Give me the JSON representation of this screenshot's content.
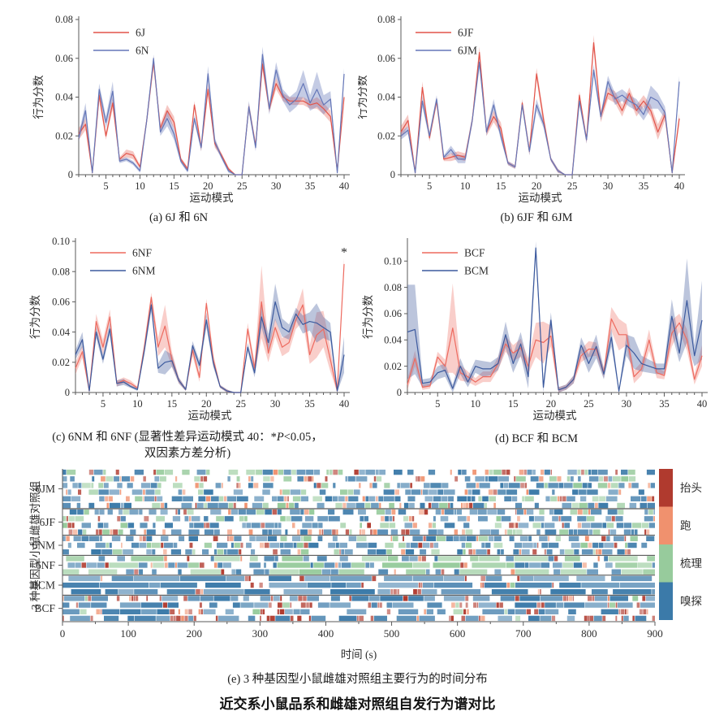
{
  "title": "近交系小鼠品系和雌雄对照组自发行为谱对比",
  "captions": {
    "a": "(a) 6J 和 6N",
    "b": "(b) 6JF 和 6JM",
    "c_pre": "(c)  6NM 和 6NF (显著性差异运动模式 40：*",
    "c_italic": "P",
    "c_post": "<0.05，",
    "c_line2": "双因素方差分析)",
    "d": "(d)  BCF 和 BCM",
    "e": "(e) 3 种基因型小鼠雌雄对照组主要行为的时间分布"
  },
  "chart_data": [
    {
      "id": "a",
      "type": "line",
      "xlabel": "运动模式",
      "ylabel": "行为分数",
      "xlim": [
        1,
        40
      ],
      "xticks": [
        5,
        10,
        15,
        20,
        25,
        30,
        35,
        40
      ],
      "ylim": [
        0,
        0.08
      ],
      "yticks": [
        0,
        0.02,
        0.04,
        0.06,
        0.08
      ],
      "ytick_labels": [
        "0",
        "0.02",
        "0.04",
        "0.06",
        "0.08"
      ],
      "series": [
        {
          "name": "6J",
          "color": "#e2544a",
          "band": "rgba(226,84,74,0.33)",
          "values": [
            0.021,
            0.026,
            0.001,
            0.041,
            0.02,
            0.037,
            0.008,
            0.011,
            0.01,
            0.004,
            0.028,
            0.058,
            0.024,
            0.033,
            0.027,
            0.008,
            0.003,
            0.036,
            0.014,
            0.044,
            0.016,
            0.01,
            0.003,
            0.0,
            0.0,
            0.035,
            0.015,
            0.057,
            0.034,
            0.047,
            0.04,
            0.038,
            0.038,
            0.038,
            0.036,
            0.037,
            0.034,
            0.03,
            0.002,
            0.04
          ],
          "err": [
            0.003,
            0.003,
            0.001,
            0.003,
            0.002,
            0.003,
            0.001,
            0.002,
            0.002,
            0.001,
            0.002,
            0.003,
            0.002,
            0.003,
            0.003,
            0.001,
            0.001,
            0.002,
            0.002,
            0.003,
            0.002,
            0.001,
            0.001,
            0.0,
            0.0,
            0.002,
            0.002,
            0.003,
            0.002,
            0.003,
            0.002,
            0.002,
            0.002,
            0.002,
            0.002,
            0.003,
            0.003,
            0.003,
            0.001,
            0.002
          ]
        },
        {
          "name": "6N",
          "color": "#6577b8",
          "band": "rgba(101,119,184,0.38)",
          "values": [
            0.019,
            0.033,
            0.001,
            0.044,
            0.027,
            0.043,
            0.007,
            0.008,
            0.006,
            0.002,
            0.028,
            0.06,
            0.022,
            0.029,
            0.021,
            0.007,
            0.002,
            0.029,
            0.014,
            0.052,
            0.017,
            0.009,
            0.002,
            0.0,
            0.0,
            0.035,
            0.014,
            0.062,
            0.034,
            0.054,
            0.041,
            0.036,
            0.039,
            0.047,
            0.037,
            0.044,
            0.036,
            0.039,
            0.001,
            0.052
          ],
          "err": [
            0.002,
            0.004,
            0.001,
            0.003,
            0.003,
            0.005,
            0.001,
            0.001,
            0.001,
            0.001,
            0.002,
            0.002,
            0.002,
            0.004,
            0.003,
            0.001,
            0.001,
            0.002,
            0.002,
            0.004,
            0.002,
            0.001,
            0.001,
            0.0,
            0.0,
            0.003,
            0.002,
            0.004,
            0.003,
            0.004,
            0.003,
            0.004,
            0.004,
            0.007,
            0.004,
            0.009,
            0.005,
            0.004,
            0.001,
            0.003
          ]
        }
      ]
    },
    {
      "id": "b",
      "type": "line",
      "xlabel": "运动模式",
      "ylabel": "行为分数",
      "xlim": [
        1,
        40
      ],
      "xticks": [
        5,
        10,
        15,
        20,
        25,
        30,
        35,
        40
      ],
      "ylim": [
        0,
        0.08
      ],
      "yticks": [
        0,
        0.02,
        0.04,
        0.06,
        0.08
      ],
      "ytick_labels": [
        "0",
        "0.02",
        "0.04",
        "0.06",
        "0.08"
      ],
      "series": [
        {
          "name": "6JF",
          "color": "#e2544a",
          "band": "rgba(226,84,74,0.33)",
          "values": [
            0.022,
            0.028,
            0.001,
            0.045,
            0.019,
            0.038,
            0.008,
            0.009,
            0.01,
            0.009,
            0.028,
            0.063,
            0.022,
            0.03,
            0.024,
            0.006,
            0.004,
            0.037,
            0.012,
            0.052,
            0.028,
            0.008,
            0.002,
            0.0,
            0.0,
            0.041,
            0.018,
            0.068,
            0.03,
            0.042,
            0.04,
            0.033,
            0.042,
            0.033,
            0.038,
            0.033,
            0.022,
            0.031,
            0.001,
            0.029
          ],
          "err": [
            0.003,
            0.003,
            0.001,
            0.003,
            0.002,
            0.002,
            0.001,
            0.002,
            0.002,
            0.002,
            0.002,
            0.003,
            0.002,
            0.003,
            0.003,
            0.001,
            0.001,
            0.002,
            0.002,
            0.003,
            0.003,
            0.001,
            0.001,
            0.0,
            0.0,
            0.002,
            0.002,
            0.004,
            0.003,
            0.003,
            0.003,
            0.003,
            0.003,
            0.003,
            0.003,
            0.003,
            0.004,
            0.003,
            0.001,
            0.003
          ]
        },
        {
          "name": "6JM",
          "color": "#6577b8",
          "band": "rgba(101,119,184,0.38)",
          "values": [
            0.02,
            0.023,
            0.001,
            0.038,
            0.02,
            0.039,
            0.009,
            0.013,
            0.008,
            0.008,
            0.028,
            0.058,
            0.022,
            0.036,
            0.02,
            0.006,
            0.004,
            0.036,
            0.012,
            0.036,
            0.026,
            0.008,
            0.002,
            0.0,
            0.0,
            0.038,
            0.018,
            0.054,
            0.03,
            0.048,
            0.039,
            0.041,
            0.038,
            0.036,
            0.031,
            0.04,
            0.038,
            0.032,
            0.001,
            0.048
          ],
          "err": [
            0.002,
            0.002,
            0.001,
            0.003,
            0.002,
            0.002,
            0.001,
            0.002,
            0.002,
            0.002,
            0.002,
            0.003,
            0.002,
            0.003,
            0.002,
            0.001,
            0.001,
            0.002,
            0.002,
            0.003,
            0.002,
            0.001,
            0.001,
            0.0,
            0.0,
            0.002,
            0.002,
            0.003,
            0.002,
            0.003,
            0.003,
            0.003,
            0.003,
            0.003,
            0.003,
            0.006,
            0.004,
            0.003,
            0.001,
            0.003
          ]
        }
      ]
    },
    {
      "id": "c",
      "type": "line",
      "xlabel": "运动模式",
      "ylabel": "行为分数",
      "xlim": [
        1,
        40
      ],
      "xticks": [
        5,
        10,
        15,
        20,
        25,
        30,
        35,
        40
      ],
      "ylim": [
        0,
        0.1
      ],
      "yticks": [
        0,
        0.02,
        0.04,
        0.06,
        0.08,
        0.1
      ],
      "ytick_labels": [
        "0",
        "0.02",
        "0.04",
        "0.06",
        "0.08",
        "0.10"
      ],
      "annotation": {
        "x": 40,
        "y": 0.09,
        "text": "*"
      },
      "series": [
        {
          "name": "6NF",
          "color": "#ed6a5f",
          "band": "rgba(238,106,95,0.33)",
          "values": [
            0.016,
            0.027,
            0.001,
            0.047,
            0.03,
            0.05,
            0.006,
            0.008,
            0.006,
            0.003,
            0.03,
            0.063,
            0.03,
            0.044,
            0.022,
            0.008,
            0.002,
            0.028,
            0.01,
            0.059,
            0.022,
            0.004,
            0.001,
            0.0,
            0.0,
            0.042,
            0.016,
            0.06,
            0.026,
            0.043,
            0.03,
            0.033,
            0.048,
            0.058,
            0.025,
            0.038,
            0.042,
            0.022,
            0.001,
            0.085
          ],
          "err": [
            0.004,
            0.004,
            0.001,
            0.005,
            0.005,
            0.005,
            0.002,
            0.002,
            0.002,
            0.001,
            0.004,
            0.003,
            0.006,
            0.014,
            0.005,
            0.002,
            0.001,
            0.004,
            0.003,
            0.003,
            0.004,
            0.001,
            0.001,
            0.0,
            0.0,
            0.004,
            0.004,
            0.024,
            0.006,
            0.006,
            0.006,
            0.006,
            0.006,
            0.011,
            0.006,
            0.015,
            0.012,
            0.008,
            0.001,
            0.004
          ]
        },
        {
          "name": "6NM",
          "color": "#3c5a9e",
          "band": "rgba(80,102,162,0.38)",
          "values": [
            0.025,
            0.035,
            0.001,
            0.04,
            0.022,
            0.042,
            0.006,
            0.007,
            0.004,
            0.002,
            0.028,
            0.058,
            0.016,
            0.02,
            0.021,
            0.008,
            0.002,
            0.031,
            0.018,
            0.048,
            0.02,
            0.004,
            0.001,
            0.0,
            0.0,
            0.03,
            0.013,
            0.05,
            0.033,
            0.06,
            0.043,
            0.04,
            0.052,
            0.045,
            0.047,
            0.046,
            0.043,
            0.04,
            0.001,
            0.025
          ],
          "err": [
            0.003,
            0.005,
            0.001,
            0.004,
            0.003,
            0.004,
            0.002,
            0.002,
            0.001,
            0.001,
            0.003,
            0.004,
            0.003,
            0.008,
            0.004,
            0.002,
            0.001,
            0.003,
            0.003,
            0.005,
            0.003,
            0.001,
            0.001,
            0.0,
            0.0,
            0.003,
            0.003,
            0.007,
            0.006,
            0.012,
            0.006,
            0.005,
            0.004,
            0.006,
            0.006,
            0.013,
            0.007,
            0.006,
            0.001,
            0.012
          ]
        }
      ]
    },
    {
      "id": "d",
      "type": "line",
      "xlabel": "运动模式",
      "ylabel": "行为分数",
      "xlim": [
        1,
        40
      ],
      "xticks": [
        5,
        10,
        15,
        20,
        25,
        30,
        35,
        40
      ],
      "ylim": [
        0,
        0.115
      ],
      "yticks": [
        0,
        0.02,
        0.04,
        0.06,
        0.08,
        0.1
      ],
      "ytick_labels": [
        "0",
        "0.02",
        "0.04",
        "0.06",
        "0.08",
        "0.10"
      ],
      "series": [
        {
          "name": "BCF",
          "color": "#ed6a5f",
          "band": "rgba(238,106,95,0.33)",
          "values": [
            0.006,
            0.026,
            0.004,
            0.005,
            0.027,
            0.02,
            0.049,
            0.015,
            0.012,
            0.008,
            0.012,
            0.012,
            0.022,
            0.037,
            0.03,
            0.034,
            0.02,
            0.04,
            0.038,
            0.043,
            0.002,
            0.004,
            0.01,
            0.028,
            0.033,
            0.033,
            0.015,
            0.056,
            0.044,
            0.044,
            0.012,
            0.018,
            0.04,
            0.015,
            0.013,
            0.045,
            0.053,
            0.04,
            0.01,
            0.028
          ],
          "err": [
            0.004,
            0.006,
            0.002,
            0.002,
            0.004,
            0.005,
            0.034,
            0.006,
            0.004,
            0.003,
            0.004,
            0.004,
            0.005,
            0.006,
            0.006,
            0.007,
            0.006,
            0.013,
            0.016,
            0.008,
            0.002,
            0.002,
            0.003,
            0.005,
            0.006,
            0.005,
            0.004,
            0.009,
            0.012,
            0.008,
            0.005,
            0.005,
            0.008,
            0.004,
            0.003,
            0.01,
            0.007,
            0.008,
            0.004,
            0.008
          ]
        },
        {
          "name": "BCM",
          "color": "#3c5a9e",
          "band": "rgba(80,102,162,0.38)",
          "values": [
            0.046,
            0.048,
            0.007,
            0.008,
            0.015,
            0.017,
            0.003,
            0.02,
            0.008,
            0.02,
            0.018,
            0.018,
            0.022,
            0.044,
            0.022,
            0.037,
            0.012,
            0.11,
            0.004,
            0.055,
            0.002,
            0.004,
            0.01,
            0.036,
            0.022,
            0.035,
            0.014,
            0.042,
            0.001,
            0.036,
            0.03,
            0.022,
            0.02,
            0.018,
            0.018,
            0.058,
            0.03,
            0.07,
            0.028,
            0.055
          ],
          "err": [
            0.036,
            0.034,
            0.003,
            0.003,
            0.005,
            0.005,
            0.003,
            0.006,
            0.004,
            0.005,
            0.006,
            0.005,
            0.005,
            0.01,
            0.007,
            0.009,
            0.009,
            0.008,
            0.004,
            0.006,
            0.002,
            0.002,
            0.003,
            0.006,
            0.007,
            0.009,
            0.004,
            0.007,
            0.001,
            0.008,
            0.012,
            0.006,
            0.005,
            0.004,
            0.004,
            0.013,
            0.007,
            0.032,
            0.008,
            0.03
          ]
        }
      ]
    },
    {
      "id": "e",
      "type": "ethogram",
      "ylabel": "3 种基因型小鼠雌雄对照组",
      "xlabel": "时间 (s)",
      "xlim": [
        0,
        900
      ],
      "xticks": [
        0,
        100,
        200,
        300,
        400,
        500,
        600,
        700,
        800,
        900
      ],
      "x_minor_step": 50,
      "groups": [
        {
          "label": "6JM",
          "rows": 6,
          "mix": {
            "sniff": 0.3,
            "groom": 0.16,
            "run": 0.09,
            "rear": 0.07,
            "gap": 0.38
          },
          "len_mult": {}
        },
        {
          "label": "6JF",
          "rows": 4,
          "mix": {
            "sniff": 0.28,
            "groom": 0.14,
            "run": 0.1,
            "rear": 0.08,
            "gap": 0.4
          },
          "len_mult": {}
        },
        {
          "label": "6NM",
          "rows": 3,
          "mix": {
            "sniff": 0.33,
            "groom": 0.12,
            "run": 0.07,
            "rear": 0.08,
            "gap": 0.4
          },
          "len_mult": {}
        },
        {
          "label": "6NF",
          "rows": 3,
          "mix": {
            "sniff": 0.28,
            "groom": 0.22,
            "run": 0.06,
            "rear": 0.07,
            "gap": 0.37
          },
          "len_mult": {
            "groom": 3.5
          }
        },
        {
          "label": "BCM",
          "rows": 3,
          "mix": {
            "sniff": 0.38,
            "groom": 0.02,
            "run": 0.04,
            "rear": 0.17,
            "gap": 0.39
          },
          "len_mult": {
            "sniff": 4.5
          }
        },
        {
          "label": "BCF",
          "rows": 4,
          "mix": {
            "sniff": 0.3,
            "groom": 0.02,
            "run": 0.05,
            "rear": 0.27,
            "gap": 0.36
          },
          "len_mult": {
            "sniff": 2
          }
        }
      ],
      "behaviors": [
        {
          "key": "rear",
          "label": "抬头",
          "color": "#b03a2e"
        },
        {
          "key": "run",
          "label": "跑",
          "color": "#f0916e"
        },
        {
          "key": "groom",
          "label": "梳理",
          "color": "#97cb9c"
        },
        {
          "key": "sniff",
          "label": "嗅探",
          "color": "#3b7aa9"
        }
      ]
    }
  ]
}
